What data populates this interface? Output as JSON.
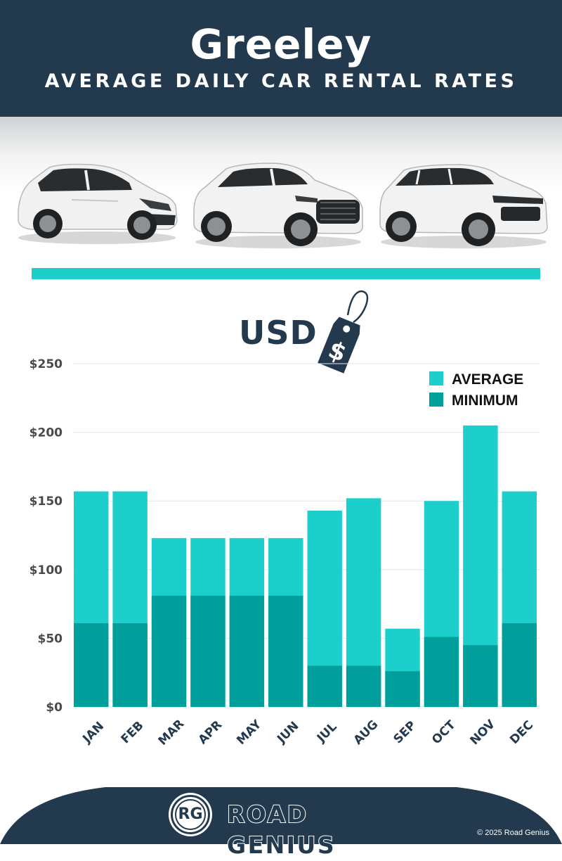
{
  "header": {
    "title": "Greeley",
    "subtitle": "AVERAGE DAILY CAR RENTAL RATES"
  },
  "currency_label": "USD",
  "currency_tag_symbol": "$",
  "colors": {
    "navy": "#233a4e",
    "teal_light": "#1ccfcb",
    "teal_dark": "#009f9b",
    "grid": "#e6e6e6"
  },
  "chart_data": {
    "type": "bar",
    "categories": [
      "JAN",
      "FEB",
      "MAR",
      "APR",
      "MAY",
      "JUN",
      "JUL",
      "AUG",
      "SEP",
      "OCT",
      "NOV",
      "DEC"
    ],
    "series": [
      {
        "name": "AVERAGE",
        "color": "#1ccfcb",
        "values": [
          157,
          157,
          123,
          123,
          123,
          123,
          143,
          152,
          57,
          150,
          205,
          157
        ]
      },
      {
        "name": "MINIMUM",
        "color": "#009f9b",
        "values": [
          61,
          61,
          81,
          81,
          81,
          81,
          30,
          30,
          26,
          51,
          45,
          61
        ]
      }
    ],
    "yticks": [
      "$0",
      "$50",
      "$100",
      "$150",
      "$200",
      "$250"
    ],
    "ylim": [
      0,
      250
    ],
    "grid": true,
    "legend": "top-right"
  },
  "footer": {
    "logo_text": "RG",
    "brand": "ROAD GENIUS",
    "copyright": "© 2025 Road Genius"
  }
}
